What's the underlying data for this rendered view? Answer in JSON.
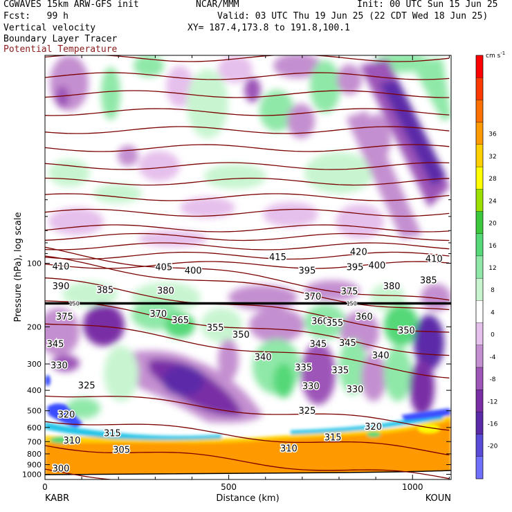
{
  "header": {
    "model": "CGWAVES 15km ARW-GFS init",
    "org": "NCAR/MMM",
    "init": "Init: 00 UTC Sun 15 Jun 25",
    "fcst": "Fcst:   99 h",
    "valid": "Valid: 03 UTC Thu 19 Jun 25 (22 CDT Wed 18 Jun 25)",
    "field1": "Vertical velocity",
    "field2": "Boundary Layer Tracer",
    "field3": "Potential Temperature",
    "xy": "XY= 187.4,173.8 to 191.8,100.1"
  },
  "colors": {
    "theta": "#7a0000",
    "field3_text": "#8b1a1a",
    "tropopause": "#000000"
  },
  "colorbar": {
    "unit": "cm s",
    "unit_sup": "-1",
    "levels": [
      -20,
      -16,
      -12,
      -8,
      -4,
      0,
      4,
      8,
      12,
      16,
      20,
      24,
      28,
      32,
      36
    ],
    "colors": [
      "#7070ff",
      "#5a4ad8",
      "#5b2aa8",
      "#7a2ea6",
      "#9d55b8",
      "#c48fd0",
      "#e6c0ec",
      "#ffffff",
      "#c8f5d0",
      "#8fe8a8",
      "#55d878",
      "#3cc83c",
      "#9be000",
      "#ffff00",
      "#ffd000",
      "#ff9900",
      "#ff7000",
      "#ff3a00",
      "#ff0000"
    ]
  },
  "chart_data": {
    "type": "heatmap",
    "title": "Vertical velocity",
    "xlabel": "Distance (km)",
    "ylabel": "Pressure (hPa), log scale",
    "x_ticks": [
      0,
      500,
      1000
    ],
    "xlim": [
      0,
      1105
    ],
    "y_ticks": [
      100,
      200,
      300,
      400,
      500,
      600,
      700,
      800,
      900,
      1000
    ],
    "y_scale": "log",
    "endpoint_left": "KABR",
    "endpoint_right": "KOUN",
    "contour_levels": {
      "theta_K": [
        300,
        305,
        310,
        315,
        320,
        325,
        330,
        335,
        340,
        345,
        350,
        355,
        360,
        365,
        370,
        375,
        380,
        385,
        390,
        395,
        400,
        405,
        410,
        415,
        420
      ]
    },
    "theta_labels": [
      {
        "v": "420",
        "x": 830,
        "p": 88
      },
      {
        "v": "415",
        "x": 610,
        "p": 93
      },
      {
        "v": "410",
        "x": 20,
        "p": 103
      },
      {
        "v": "410",
        "x": 1035,
        "p": 95
      },
      {
        "v": "405",
        "x": 300,
        "p": 104
      },
      {
        "v": "400",
        "x": 380,
        "p": 108
      },
      {
        "v": "400",
        "x": 880,
        "p": 102
      },
      {
        "v": "395",
        "x": 690,
        "p": 108
      },
      {
        "v": "395",
        "x": 820,
        "p": 104
      },
      {
        "v": "390",
        "x": 20,
        "p": 128
      },
      {
        "v": "385",
        "x": 140,
        "p": 133
      },
      {
        "v": "385",
        "x": 1020,
        "p": 120
      },
      {
        "v": "380",
        "x": 305,
        "p": 134
      },
      {
        "v": "380",
        "x": 920,
        "p": 128
      },
      {
        "v": "375",
        "x": 30,
        "p": 178
      },
      {
        "v": "375",
        "x": 805,
        "p": 135
      },
      {
        "v": "370",
        "x": 285,
        "p": 173
      },
      {
        "v": "370",
        "x": 705,
        "p": 143
      },
      {
        "v": "365",
        "x": 345,
        "p": 185
      },
      {
        "v": "360",
        "x": 725,
        "p": 187
      },
      {
        "v": "360",
        "x": 845,
        "p": 178
      },
      {
        "v": "355",
        "x": 440,
        "p": 201
      },
      {
        "v": "355",
        "x": 765,
        "p": 191
      },
      {
        "v": "350",
        "x": 510,
        "p": 217
      },
      {
        "v": "350",
        "x": 960,
        "p": 207
      },
      {
        "v": "345",
        "x": 5,
        "p": 240
      },
      {
        "v": "345",
        "x": 720,
        "p": 240
      },
      {
        "v": "345",
        "x": 800,
        "p": 237
      },
      {
        "v": "340",
        "x": 570,
        "p": 277
      },
      {
        "v": "340",
        "x": 890,
        "p": 272
      },
      {
        "v": "335",
        "x": 680,
        "p": 310
      },
      {
        "v": "335",
        "x": 780,
        "p": 320
      },
      {
        "v": "330",
        "x": 15,
        "p": 303
      },
      {
        "v": "330",
        "x": 700,
        "p": 380
      },
      {
        "v": "330",
        "x": 820,
        "p": 393
      },
      {
        "v": "325",
        "x": 90,
        "p": 377
      },
      {
        "v": "325",
        "x": 690,
        "p": 497
      },
      {
        "v": "320",
        "x": 35,
        "p": 518
      },
      {
        "v": "320",
        "x": 870,
        "p": 591
      },
      {
        "v": "315",
        "x": 160,
        "p": 636
      },
      {
        "v": "315",
        "x": 760,
        "p": 665
      },
      {
        "v": "310",
        "x": 50,
        "p": 688
      },
      {
        "v": "310",
        "x": 640,
        "p": 752
      },
      {
        "v": "305",
        "x": 185,
        "p": 761
      },
      {
        "v": "300",
        "x": 20,
        "p": 935
      }
    ],
    "tropopause": {
      "p": 155,
      "label": "150"
    }
  }
}
